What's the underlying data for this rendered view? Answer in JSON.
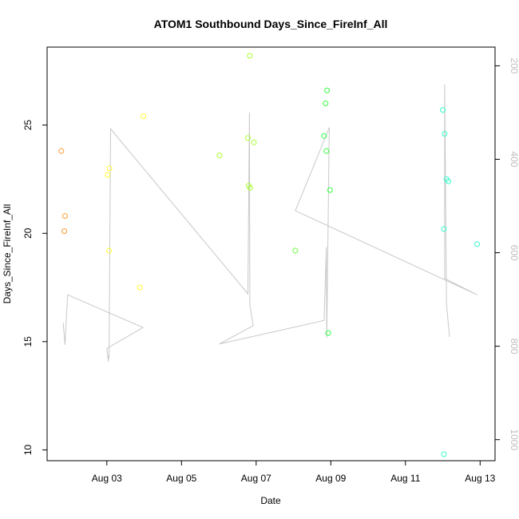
{
  "chart_data": {
    "type": "scatter",
    "title": "ATOM1 Southbound Days_Since_FireInf_All",
    "xlabel": "Date",
    "ylabel": "Days_Since_FireInf_All",
    "x_ticks": [
      "Aug 03",
      "Aug 05",
      "Aug 07",
      "Aug 09",
      "Aug 11",
      "Aug 13"
    ],
    "x_tick_values": [
      3,
      5,
      7,
      9,
      11,
      13
    ],
    "xlim": [
      1.4,
      13.4
    ],
    "y_ticks": [
      10,
      15,
      20,
      25
    ],
    "ylim": [
      9.5,
      28.6
    ],
    "y2_ticks": [
      200,
      400,
      600,
      800,
      1000
    ],
    "y2lim": [
      1045,
      160
    ],
    "grid": false,
    "series": [
      {
        "kind": "points",
        "color_by_date": true,
        "points": [
          {
            "x": 1.78,
            "y": 23.8,
            "color": "#ff9933"
          },
          {
            "x": 1.86,
            "y": 20.1,
            "color": "#ff9933"
          },
          {
            "x": 1.88,
            "y": 20.8,
            "color": "#ff9933"
          },
          {
            "x": 3.02,
            "y": 22.7,
            "color": "#ffff33"
          },
          {
            "x": 3.07,
            "y": 23.0,
            "color": "#ffff33"
          },
          {
            "x": 3.06,
            "y": 19.2,
            "color": "#ffff33"
          },
          {
            "x": 3.88,
            "y": 17.5,
            "color": "#ffff33"
          },
          {
            "x": 3.98,
            "y": 25.4,
            "color": "#ffff33"
          },
          {
            "x": 6.02,
            "y": 23.6,
            "color": "#aaff33"
          },
          {
            "x": 6.78,
            "y": 24.4,
            "color": "#aaff33"
          },
          {
            "x": 6.8,
            "y": 22.2,
            "color": "#aaff33"
          },
          {
            "x": 6.84,
            "y": 22.1,
            "color": "#aaff33"
          },
          {
            "x": 6.83,
            "y": 28.2,
            "color": "#aaff33"
          },
          {
            "x": 6.94,
            "y": 24.2,
            "color": "#aaff33"
          },
          {
            "x": 8.05,
            "y": 19.2,
            "color": "#66ff33"
          },
          {
            "x": 8.82,
            "y": 24.5,
            "color": "#33ff44"
          },
          {
            "x": 8.86,
            "y": 26.0,
            "color": "#33ff44"
          },
          {
            "x": 8.88,
            "y": 23.8,
            "color": "#33ff44"
          },
          {
            "x": 8.9,
            "y": 26.6,
            "color": "#33ff44"
          },
          {
            "x": 8.93,
            "y": 15.4,
            "color": "#33ff44"
          },
          {
            "x": 8.98,
            "y": 22.0,
            "color": "#33ff44"
          },
          {
            "x": 12.0,
            "y": 25.7,
            "color": "#33ffcc"
          },
          {
            "x": 12.03,
            "y": 20.2,
            "color": "#33ffcc"
          },
          {
            "x": 12.05,
            "y": 24.6,
            "color": "#33ffcc"
          },
          {
            "x": 12.1,
            "y": 22.5,
            "color": "#33ffcc"
          },
          {
            "x": 12.15,
            "y": 22.4,
            "color": "#33ffcc"
          },
          {
            "x": 12.03,
            "y": 9.8,
            "color": "#33ffcc"
          },
          {
            "x": 12.92,
            "y": 19.5,
            "color": "#33ffcc"
          }
        ]
      },
      {
        "kind": "line",
        "axis": "right",
        "color": "#c8c8c8",
        "points": [
          {
            "x": 1.83,
            "y2": 750
          },
          {
            "x": 1.88,
            "y2": 797
          },
          {
            "x": 1.95,
            "y2": 690
          },
          {
            "x": 3.97,
            "y2": 760
          },
          {
            "x": 3.0,
            "y2": 805
          },
          {
            "x": 3.04,
            "y2": 833
          },
          {
            "x": 3.04,
            "y2": 820
          },
          {
            "x": 3.06,
            "y2": 826
          },
          {
            "x": 3.1,
            "y2": 335
          },
          {
            "x": 6.78,
            "y2": 688
          },
          {
            "x": 6.82,
            "y2": 300
          },
          {
            "x": 6.83,
            "y2": 712
          },
          {
            "x": 6.92,
            "y2": 756
          },
          {
            "x": 6.02,
            "y2": 795
          },
          {
            "x": 8.82,
            "y2": 745
          },
          {
            "x": 8.88,
            "y2": 588
          },
          {
            "x": 8.89,
            "y2": 782
          },
          {
            "x": 8.96,
            "y2": 332
          },
          {
            "x": 8.05,
            "y2": 510
          },
          {
            "x": 12.92,
            "y2": 690
          },
          {
            "x": 12.05,
            "y2": 655
          },
          {
            "x": 12.05,
            "y2": 240
          },
          {
            "x": 12.1,
            "y2": 710
          },
          {
            "x": 12.18,
            "y2": 780
          }
        ]
      }
    ]
  }
}
